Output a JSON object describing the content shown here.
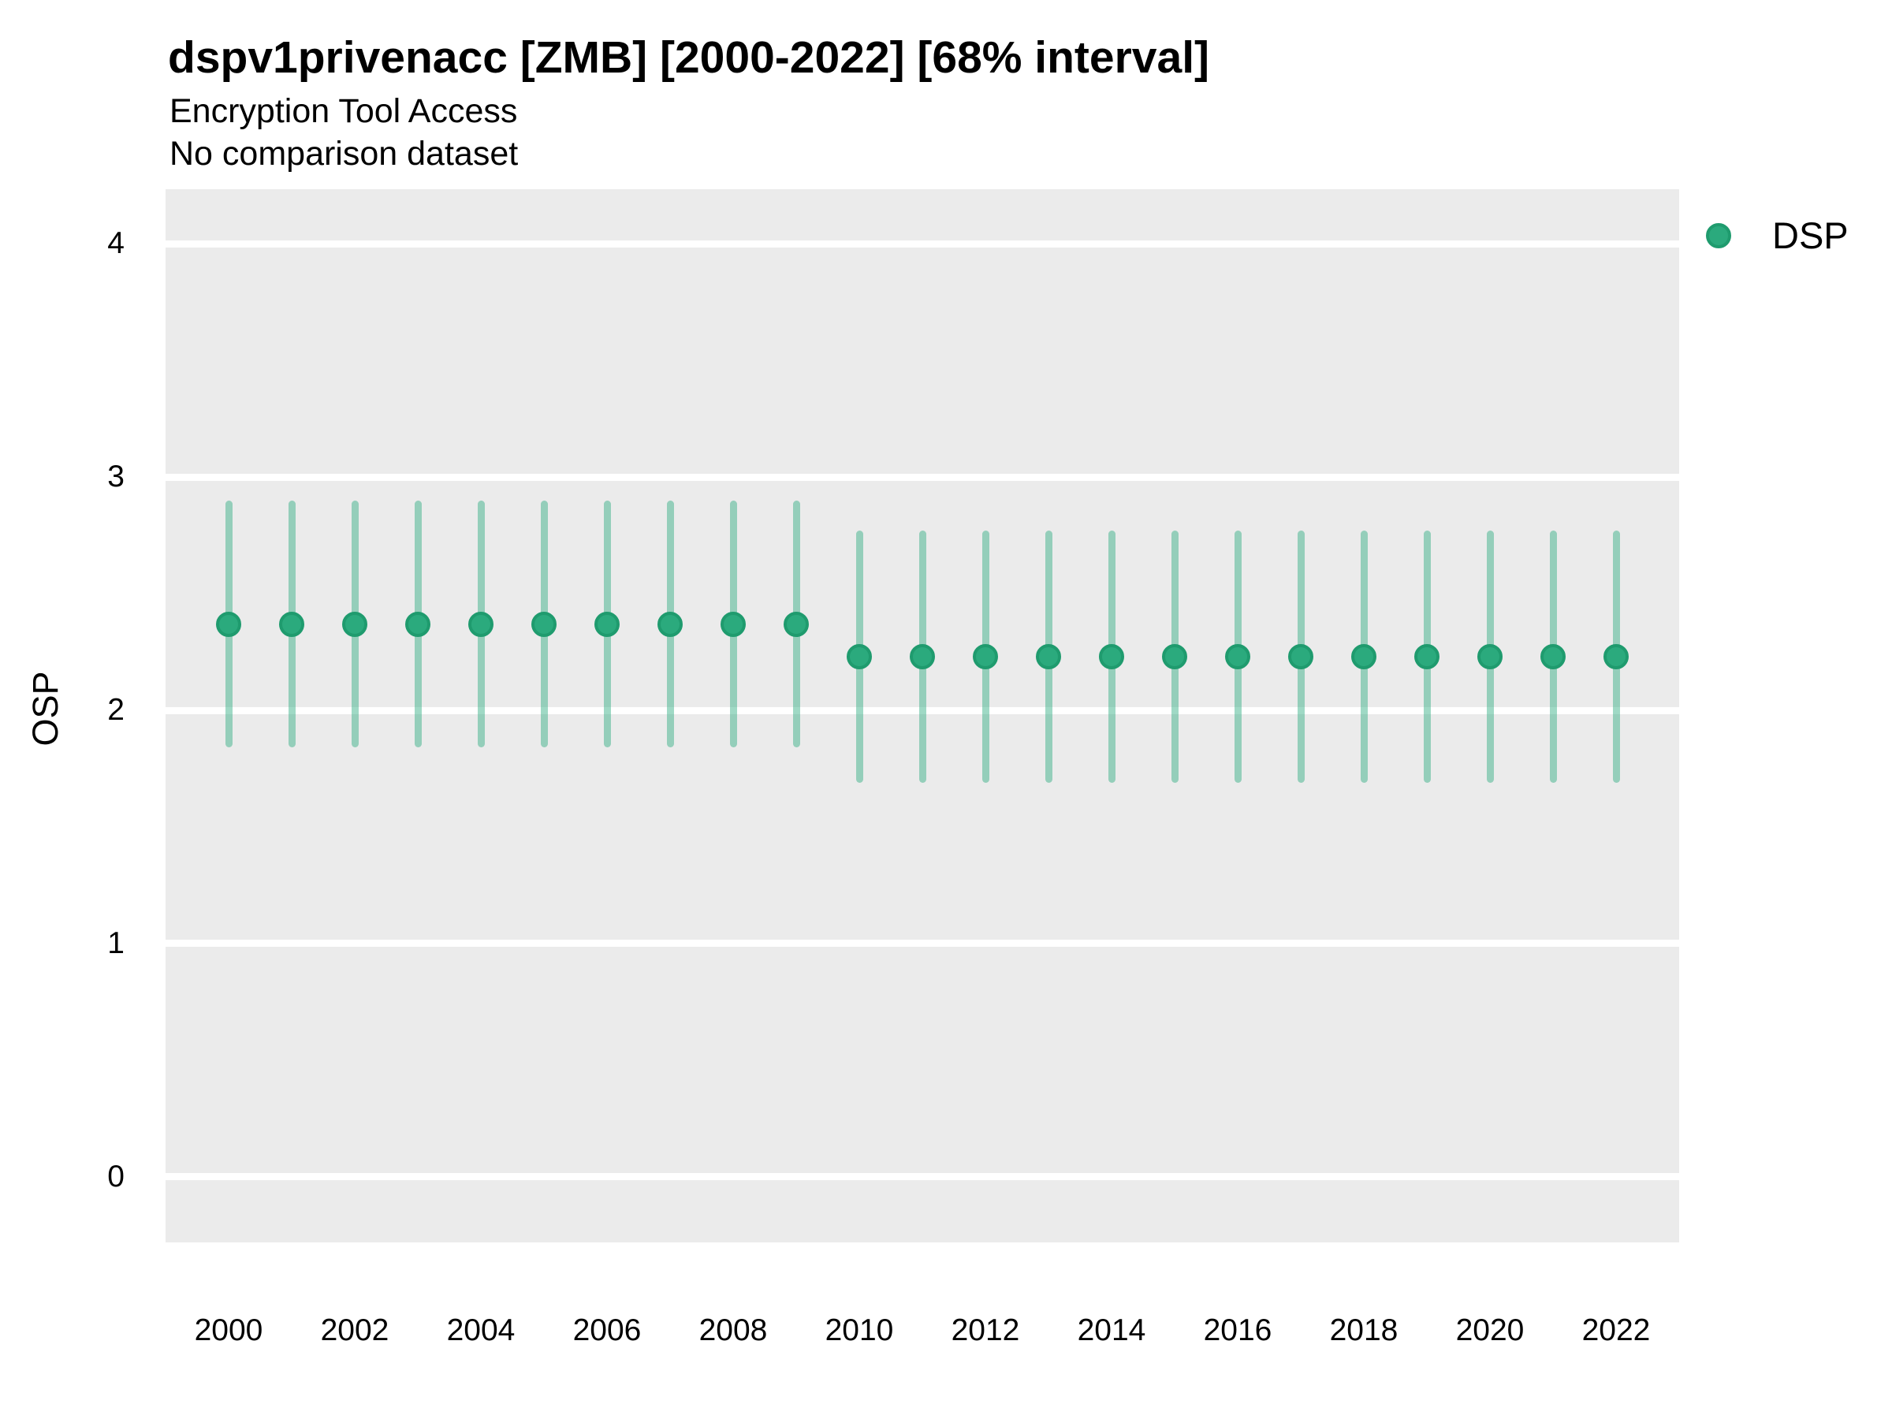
{
  "header": {
    "title": "dspv1privenacc [ZMB] [2000-2022] [68% interval]",
    "subtitle": "Encryption Tool Access",
    "subtitle2": "No comparison dataset"
  },
  "legend": {
    "position": "right-top",
    "items": [
      {
        "label": "DSP",
        "marker": "circle-icon",
        "marker_fill": "#2BAA7D",
        "marker_stroke": "#1F9B6E"
      }
    ]
  },
  "colors": {
    "panel_bg": "#EBEBEB",
    "gridline": "#FFFFFF",
    "point_fill": "#2BAA7D",
    "point_stroke": "#1F9B6E",
    "errorbar": "#2AAA7E",
    "errorbar_opacity": 0.45,
    "text": "#000000"
  },
  "chart_data": {
    "type": "scatter",
    "title": "dspv1privenacc [ZMB] [2000-2022] [68% interval]",
    "subtitle": "Encryption Tool Access",
    "subtitle2": "No comparison dataset",
    "interval": "68%",
    "xlabel": "",
    "ylabel": "OSP",
    "xlim": [
      1999,
      2023
    ],
    "ylim": [
      -0.281,
      4.234
    ],
    "yticks": [
      0,
      1,
      2,
      3,
      4
    ],
    "xticks": [
      2000,
      2002,
      2004,
      2006,
      2008,
      2010,
      2012,
      2014,
      2016,
      2018,
      2020,
      2022
    ],
    "grid": "horizontal-major-only-white-on-grey",
    "legend_position": "right-top",
    "series": [
      {
        "name": "DSP",
        "style": "point-with-vertical-interval",
        "points": [
          {
            "year": 2000,
            "value": 2.37,
            "lower": 1.84,
            "upper": 2.9
          },
          {
            "year": 2001,
            "value": 2.37,
            "lower": 1.84,
            "upper": 2.9
          },
          {
            "year": 2002,
            "value": 2.37,
            "lower": 1.84,
            "upper": 2.9
          },
          {
            "year": 2003,
            "value": 2.37,
            "lower": 1.84,
            "upper": 2.9
          },
          {
            "year": 2004,
            "value": 2.37,
            "lower": 1.84,
            "upper": 2.9
          },
          {
            "year": 2005,
            "value": 2.37,
            "lower": 1.84,
            "upper": 2.9
          },
          {
            "year": 2006,
            "value": 2.37,
            "lower": 1.84,
            "upper": 2.9
          },
          {
            "year": 2007,
            "value": 2.37,
            "lower": 1.84,
            "upper": 2.9
          },
          {
            "year": 2008,
            "value": 2.37,
            "lower": 1.84,
            "upper": 2.9
          },
          {
            "year": 2009,
            "value": 2.37,
            "lower": 1.84,
            "upper": 2.9
          },
          {
            "year": 2010,
            "value": 2.23,
            "lower": 1.69,
            "upper": 2.77
          },
          {
            "year": 2011,
            "value": 2.23,
            "lower": 1.69,
            "upper": 2.77
          },
          {
            "year": 2012,
            "value": 2.23,
            "lower": 1.69,
            "upper": 2.77
          },
          {
            "year": 2013,
            "value": 2.23,
            "lower": 1.69,
            "upper": 2.77
          },
          {
            "year": 2014,
            "value": 2.23,
            "lower": 1.69,
            "upper": 2.77
          },
          {
            "year": 2015,
            "value": 2.23,
            "lower": 1.69,
            "upper": 2.77
          },
          {
            "year": 2016,
            "value": 2.23,
            "lower": 1.69,
            "upper": 2.77
          },
          {
            "year": 2017,
            "value": 2.23,
            "lower": 1.69,
            "upper": 2.77
          },
          {
            "year": 2018,
            "value": 2.23,
            "lower": 1.69,
            "upper": 2.77
          },
          {
            "year": 2019,
            "value": 2.23,
            "lower": 1.69,
            "upper": 2.77
          },
          {
            "year": 2020,
            "value": 2.23,
            "lower": 1.69,
            "upper": 2.77
          },
          {
            "year": 2021,
            "value": 2.23,
            "lower": 1.69,
            "upper": 2.77
          },
          {
            "year": 2022,
            "value": 2.23,
            "lower": 1.69,
            "upper": 2.77
          }
        ]
      }
    ]
  }
}
